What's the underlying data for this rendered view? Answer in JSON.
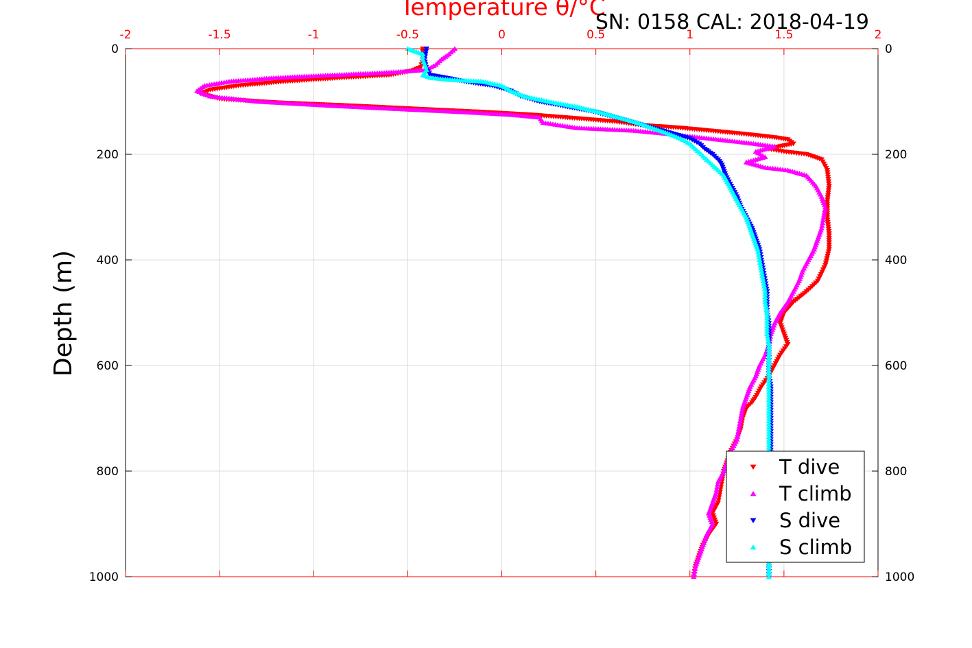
{
  "chart_data": {
    "type": "scatter",
    "title": "Temperature θ/°C",
    "subtitle": "SN: 0158  CAL: 2018-04-19",
    "xlabel": "Temperature θ/°C",
    "ylabel": "Depth (m)",
    "xlim": [
      -2,
      2
    ],
    "ylim": [
      0,
      1000
    ],
    "y_reversed": true,
    "grid": true,
    "legend_position": "bottom-right",
    "x_ticks": [
      "-2",
      "-1.5",
      "-1",
      "-0.5",
      "0",
      "0.5",
      "1",
      "1.5",
      "2"
    ],
    "y_ticks": [
      "0",
      "200",
      "400",
      "600",
      "800",
      "1000"
    ],
    "colors": {
      "t_dive": "#ff0000",
      "t_climb": "#ff00ff",
      "s_dive": "#0000ff",
      "s_climb": "#00ffff",
      "axis_top": "#ff0000"
    },
    "series": [
      {
        "name": "T dive",
        "marker": "triangle-down",
        "color": "#ff0000",
        "points": [
          [
            -0.42,
            0
          ],
          [
            -0.42,
            20
          ],
          [
            -0.43,
            35
          ],
          [
            -0.48,
            42
          ],
          [
            -0.6,
            50
          ],
          [
            -0.85,
            55
          ],
          [
            -1.15,
            62
          ],
          [
            -1.4,
            70
          ],
          [
            -1.55,
            78
          ],
          [
            -1.6,
            85
          ],
          [
            -1.5,
            95
          ],
          [
            -1.2,
            102
          ],
          [
            -0.8,
            108
          ],
          [
            -0.4,
            115
          ],
          [
            -0.1,
            120
          ],
          [
            0.15,
            125
          ],
          [
            0.4,
            132
          ],
          [
            0.6,
            138
          ],
          [
            0.75,
            145
          ],
          [
            0.95,
            150
          ],
          [
            1.1,
            155
          ],
          [
            1.3,
            162
          ],
          [
            1.45,
            168
          ],
          [
            1.52,
            172
          ],
          [
            1.55,
            180
          ],
          [
            1.48,
            185
          ],
          [
            1.42,
            190
          ],
          [
            1.5,
            195
          ],
          [
            1.62,
            200
          ],
          [
            1.7,
            210
          ],
          [
            1.73,
            230
          ],
          [
            1.74,
            260
          ],
          [
            1.73,
            290
          ],
          [
            1.73,
            320
          ],
          [
            1.74,
            350
          ],
          [
            1.74,
            380
          ],
          [
            1.72,
            410
          ],
          [
            1.68,
            440
          ],
          [
            1.62,
            460
          ],
          [
            1.55,
            480
          ],
          [
            1.5,
            500
          ],
          [
            1.48,
            520
          ],
          [
            1.5,
            540
          ],
          [
            1.52,
            560
          ],
          [
            1.48,
            580
          ],
          [
            1.45,
            600
          ],
          [
            1.42,
            620
          ],
          [
            1.38,
            640
          ],
          [
            1.35,
            660
          ],
          [
            1.33,
            670
          ],
          [
            1.3,
            680
          ],
          [
            1.28,
            700
          ],
          [
            1.27,
            720
          ],
          [
            1.25,
            740
          ],
          [
            1.22,
            760
          ],
          [
            1.2,
            780
          ],
          [
            1.18,
            800
          ],
          [
            1.17,
            820
          ],
          [
            1.16,
            840
          ],
          [
            1.15,
            860
          ],
          [
            1.12,
            880
          ],
          [
            1.14,
            900
          ],
          [
            1.1,
            920
          ],
          [
            1.07,
            940
          ],
          [
            1.05,
            960
          ],
          [
            1.03,
            980
          ],
          [
            1.02,
            1000
          ]
        ]
      },
      {
        "name": "T climb",
        "marker": "triangle-up",
        "color": "#ff00ff",
        "points": [
          [
            -0.25,
            0
          ],
          [
            -0.28,
            10
          ],
          [
            -0.32,
            20
          ],
          [
            -0.35,
            30
          ],
          [
            -0.4,
            40
          ],
          [
            -0.6,
            45
          ],
          [
            -0.9,
            50
          ],
          [
            -1.2,
            55
          ],
          [
            -1.45,
            62
          ],
          [
            -1.58,
            70
          ],
          [
            -1.62,
            80
          ],
          [
            -1.55,
            90
          ],
          [
            -1.3,
            100
          ],
          [
            -0.9,
            108
          ],
          [
            -0.5,
            115
          ],
          [
            -0.2,
            120
          ],
          [
            0.05,
            125
          ],
          [
            0.2,
            130
          ],
          [
            0.22,
            140
          ],
          [
            0.4,
            150
          ],
          [
            0.7,
            155
          ],
          [
            0.85,
            160
          ],
          [
            1.1,
            170
          ],
          [
            1.3,
            178
          ],
          [
            1.45,
            185
          ],
          [
            1.35,
            195
          ],
          [
            1.4,
            205
          ],
          [
            1.3,
            215
          ],
          [
            1.4,
            225
          ],
          [
            1.52,
            230
          ],
          [
            1.62,
            240
          ],
          [
            1.67,
            260
          ],
          [
            1.7,
            280
          ],
          [
            1.72,
            300
          ],
          [
            1.71,
            320
          ],
          [
            1.7,
            340
          ],
          [
            1.68,
            360
          ],
          [
            1.66,
            380
          ],
          [
            1.63,
            400
          ],
          [
            1.6,
            420
          ],
          [
            1.58,
            440
          ],
          [
            1.55,
            460
          ],
          [
            1.52,
            480
          ],
          [
            1.48,
            500
          ],
          [
            1.45,
            520
          ],
          [
            1.43,
            540
          ],
          [
            1.42,
            560
          ],
          [
            1.4,
            580
          ],
          [
            1.37,
            600
          ],
          [
            1.35,
            620
          ],
          [
            1.32,
            640
          ],
          [
            1.3,
            660
          ],
          [
            1.28,
            680
          ],
          [
            1.27,
            700
          ],
          [
            1.26,
            720
          ],
          [
            1.25,
            740
          ],
          [
            1.22,
            760
          ],
          [
            1.2,
            780
          ],
          [
            1.18,
            800
          ],
          [
            1.15,
            820
          ],
          [
            1.14,
            840
          ],
          [
            1.12,
            860
          ],
          [
            1.1,
            880
          ],
          [
            1.12,
            900
          ],
          [
            1.09,
            920
          ],
          [
            1.07,
            940
          ],
          [
            1.05,
            960
          ],
          [
            1.03,
            980
          ],
          [
            1.02,
            1000
          ]
        ]
      },
      {
        "name": "S dive",
        "marker": "triangle-down",
        "color": "#0000ff",
        "points": [
          [
            -0.4,
            0
          ],
          [
            -0.41,
            20
          ],
          [
            -0.4,
            40
          ],
          [
            -0.38,
            50
          ],
          [
            -0.3,
            55
          ],
          [
            -0.2,
            62
          ],
          [
            -0.05,
            70
          ],
          [
            0.05,
            80
          ],
          [
            0.1,
            90
          ],
          [
            0.2,
            100
          ],
          [
            0.35,
            110
          ],
          [
            0.5,
            120
          ],
          [
            0.6,
            130
          ],
          [
            0.7,
            140
          ],
          [
            0.8,
            150
          ],
          [
            0.9,
            160
          ],
          [
            1.0,
            170
          ],
          [
            1.05,
            180
          ],
          [
            1.08,
            190
          ],
          [
            1.12,
            200
          ],
          [
            1.15,
            210
          ],
          [
            1.17,
            220
          ],
          [
            1.19,
            240
          ],
          [
            1.22,
            260
          ],
          [
            1.25,
            280
          ],
          [
            1.27,
            300
          ],
          [
            1.3,
            320
          ],
          [
            1.33,
            340
          ],
          [
            1.35,
            360
          ],
          [
            1.37,
            380
          ],
          [
            1.38,
            400
          ],
          [
            1.39,
            420
          ],
          [
            1.4,
            440
          ],
          [
            1.41,
            460
          ],
          [
            1.41,
            480
          ],
          [
            1.41,
            500
          ],
          [
            1.42,
            520
          ],
          [
            1.42,
            540
          ],
          [
            1.42,
            560
          ],
          [
            1.42,
            580
          ],
          [
            1.42,
            600
          ],
          [
            1.42,
            620
          ],
          [
            1.43,
            640
          ],
          [
            1.43,
            660
          ],
          [
            1.43,
            680
          ],
          [
            1.43,
            700
          ],
          [
            1.43,
            720
          ],
          [
            1.43,
            740
          ],
          [
            1.43,
            760
          ],
          [
            1.43,
            780
          ],
          [
            1.42,
            800
          ],
          [
            1.42,
            820
          ],
          [
            1.42,
            840
          ],
          [
            1.42,
            860
          ],
          [
            1.42,
            880
          ],
          [
            1.42,
            900
          ],
          [
            1.42,
            920
          ],
          [
            1.42,
            940
          ],
          [
            1.42,
            960
          ],
          [
            1.42,
            980
          ],
          [
            1.42,
            1000
          ]
        ]
      },
      {
        "name": "S climb",
        "marker": "triangle-up",
        "color": "#00ffff",
        "points": [
          [
            -0.5,
            0
          ],
          [
            -0.42,
            10
          ],
          [
            -0.42,
            20
          ],
          [
            -0.41,
            30
          ],
          [
            -0.4,
            40
          ],
          [
            -0.42,
            50
          ],
          [
            -0.38,
            55
          ],
          [
            -0.3,
            58
          ],
          [
            -0.1,
            62
          ],
          [
            0.0,
            70
          ],
          [
            0.05,
            80
          ],
          [
            0.12,
            90
          ],
          [
            0.25,
            100
          ],
          [
            0.4,
            110
          ],
          [
            0.52,
            120
          ],
          [
            0.62,
            130
          ],
          [
            0.72,
            140
          ],
          [
            0.8,
            150
          ],
          [
            0.88,
            160
          ],
          [
            0.95,
            170
          ],
          [
            1.0,
            180
          ],
          [
            1.03,
            190
          ],
          [
            1.06,
            200
          ],
          [
            1.09,
            210
          ],
          [
            1.12,
            220
          ],
          [
            1.15,
            230
          ],
          [
            1.18,
            240
          ],
          [
            1.21,
            260
          ],
          [
            1.24,
            280
          ],
          [
            1.27,
            300
          ],
          [
            1.3,
            320
          ],
          [
            1.32,
            340
          ],
          [
            1.34,
            360
          ],
          [
            1.36,
            380
          ],
          [
            1.37,
            400
          ],
          [
            1.38,
            420
          ],
          [
            1.39,
            440
          ],
          [
            1.4,
            460
          ],
          [
            1.4,
            480
          ],
          [
            1.41,
            500
          ],
          [
            1.41,
            520
          ],
          [
            1.41,
            540
          ],
          [
            1.42,
            560
          ],
          [
            1.42,
            580
          ],
          [
            1.42,
            600
          ],
          [
            1.42,
            620
          ],
          [
            1.42,
            640
          ],
          [
            1.42,
            660
          ],
          [
            1.42,
            680
          ],
          [
            1.42,
            700
          ],
          [
            1.42,
            720
          ],
          [
            1.42,
            740
          ],
          [
            1.42,
            760
          ],
          [
            1.42,
            780
          ],
          [
            1.42,
            800
          ],
          [
            1.42,
            820
          ],
          [
            1.42,
            840
          ],
          [
            1.42,
            860
          ],
          [
            1.42,
            880
          ],
          [
            1.42,
            900
          ],
          [
            1.42,
            920
          ],
          [
            1.42,
            940
          ],
          [
            1.42,
            960
          ],
          [
            1.42,
            980
          ],
          [
            1.42,
            1000
          ]
        ]
      }
    ]
  }
}
